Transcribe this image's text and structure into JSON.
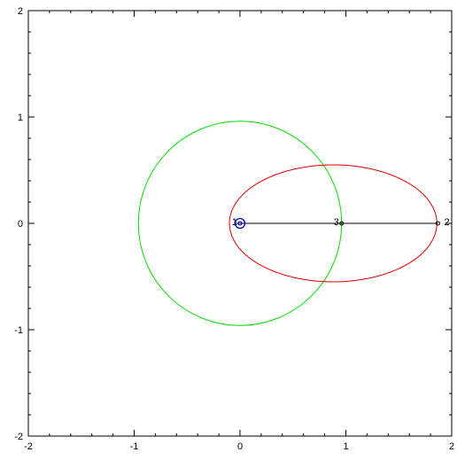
{
  "chart_data": {
    "type": "line",
    "xlim": [
      -2,
      2
    ],
    "ylim": [
      -2,
      2
    ],
    "x_ticks": [
      -2,
      -1,
      0,
      1,
      2
    ],
    "y_ticks": [
      -2,
      -1,
      0,
      1,
      2
    ],
    "x_tick_labels": [
      "-2",
      "-1",
      "0",
      "1",
      "2"
    ],
    "y_tick_labels": [
      "-2",
      "-1",
      "0",
      "1",
      "2"
    ],
    "minor_tick_step": 0.2,
    "grid": false,
    "series": [
      {
        "shape": "circle",
        "color": "#00dd00",
        "center": [
          0,
          0
        ],
        "radius": 0.96
      },
      {
        "shape": "ellipse",
        "color": "#dd0000",
        "center": [
          0.88,
          0
        ],
        "rx": 0.98,
        "ry": 0.55
      },
      {
        "shape": "segment",
        "color": "#000000",
        "x": [
          0,
          1.87
        ],
        "y": [
          0,
          0
        ]
      }
    ],
    "points": [
      {
        "label": "1",
        "x": 0,
        "y": 0
      },
      {
        "label": "3",
        "x": 0.96,
        "y": 0
      },
      {
        "label": "2",
        "x": 1.87,
        "y": 0
      }
    ],
    "origin_marker": {
      "x": 0,
      "y": 0,
      "color": "#0000cc"
    }
  }
}
